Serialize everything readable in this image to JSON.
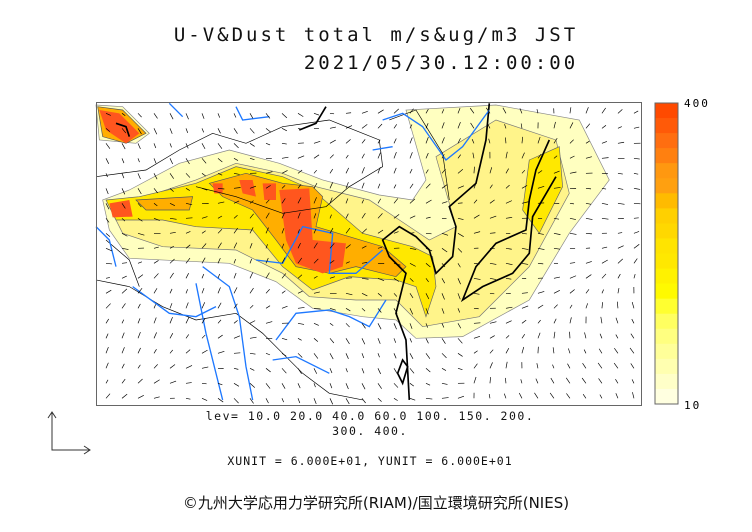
{
  "title": {
    "line1": "U-V&Dust total m/s&ug/m3 JST",
    "line2": "2021/05/30.12:00:00"
  },
  "colorbar": {
    "max_label": "400",
    "min_label": "10",
    "colors": [
      "#ff4a00",
      "#ff5a08",
      "#ff6e10",
      "#ff8010",
      "#ff9810",
      "#ffa010",
      "#ffbb00",
      "#ffd000",
      "#ffd800",
      "#ffe400",
      "#ffe800",
      "#fff200",
      "#fffa00",
      "#ffff30",
      "#ffff60",
      "#ffff80",
      "#ffff99",
      "#ffffb0",
      "#ffffc8",
      "#ffffe0"
    ]
  },
  "levels": {
    "line1": "lev= 10.0 20.0 40.0 60.0 100. 150. 200.",
    "line2": "300. 400."
  },
  "units": "XUNIT = 6.000E+01, YUNIT = 6.000E+01",
  "footer": "©九州大学応用力学研究所(RIAM)/国立環境研究所(NIES)",
  "colors": {
    "river": "#1e78ff",
    "coast": "#000000",
    "pale": "#ffffc0",
    "light": "#fff48a",
    "yellow": "#ffe800",
    "orange": "#ffae00",
    "red": "#ff561e"
  }
}
